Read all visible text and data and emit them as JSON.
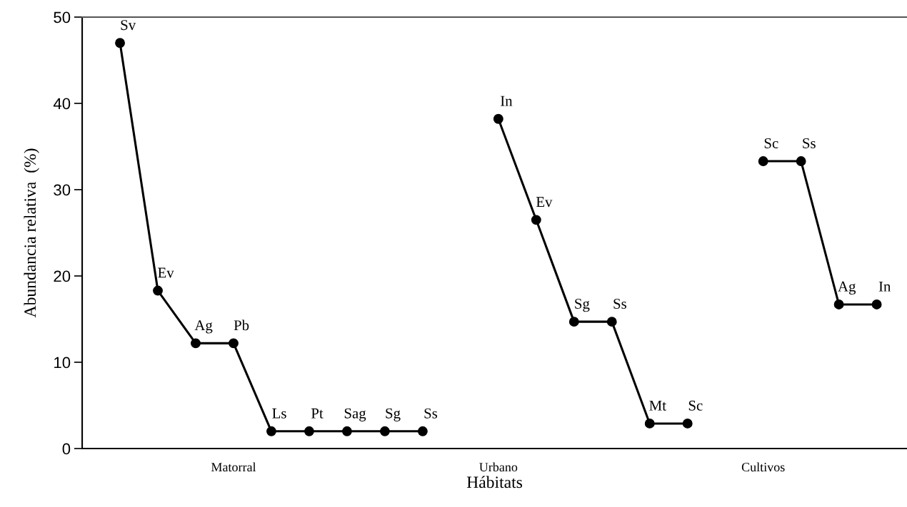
{
  "chart_data": {
    "type": "line",
    "xlabel": "Hábitats",
    "ylabel": "Abundancia relativa  (%)",
    "categories": [
      null,
      null,
      null,
      "Matorral",
      null,
      null,
      null,
      null,
      null,
      null,
      "Urbano",
      null,
      null,
      null,
      null,
      null,
      null,
      "Cultivos",
      null,
      null,
      null
    ],
    "series": [
      {
        "color": "#000000",
        "values": [
          47.0,
          18.3,
          12.2,
          12.2,
          2.0,
          2.0,
          2.0,
          2.0,
          2.0,
          null,
          null,
          null,
          null,
          null,
          null,
          null,
          null,
          null,
          null,
          null,
          null
        ],
        "value_labels": [
          "Sv",
          "Ev",
          "Ag",
          "Pb",
          "Ls",
          "Pt",
          "Sag",
          "Sg",
          "Ss",
          null,
          null,
          null,
          null,
          null,
          null,
          null,
          null,
          null,
          null,
          null,
          null
        ]
      },
      {
        "color": "#000000",
        "values": [
          null,
          null,
          null,
          null,
          null,
          null,
          null,
          null,
          null,
          null,
          38.2,
          26.5,
          14.7,
          14.7,
          2.9,
          2.9,
          null,
          null,
          null,
          null,
          null
        ],
        "value_labels": [
          null,
          null,
          null,
          null,
          null,
          null,
          null,
          null,
          null,
          null,
          "In",
          "Ev",
          "Sg",
          "Ss",
          "Mt",
          "Sc",
          null,
          null,
          null,
          null,
          null
        ]
      },
      {
        "color": "#000000",
        "values": [
          null,
          null,
          null,
          null,
          null,
          null,
          null,
          null,
          null,
          null,
          null,
          null,
          null,
          null,
          null,
          null,
          null,
          33.3,
          33.3,
          16.7,
          16.7
        ],
        "value_labels": [
          null,
          null,
          null,
          null,
          null,
          null,
          null,
          null,
          null,
          null,
          null,
          null,
          null,
          null,
          null,
          null,
          null,
          "Sc",
          "Ss",
          "Ag",
          "In"
        ]
      }
    ],
    "ylim": [
      0,
      50
    ],
    "yticks": [
      0,
      10,
      20,
      30,
      40,
      50
    ],
    "marker": "circle",
    "line_style": "solid"
  }
}
